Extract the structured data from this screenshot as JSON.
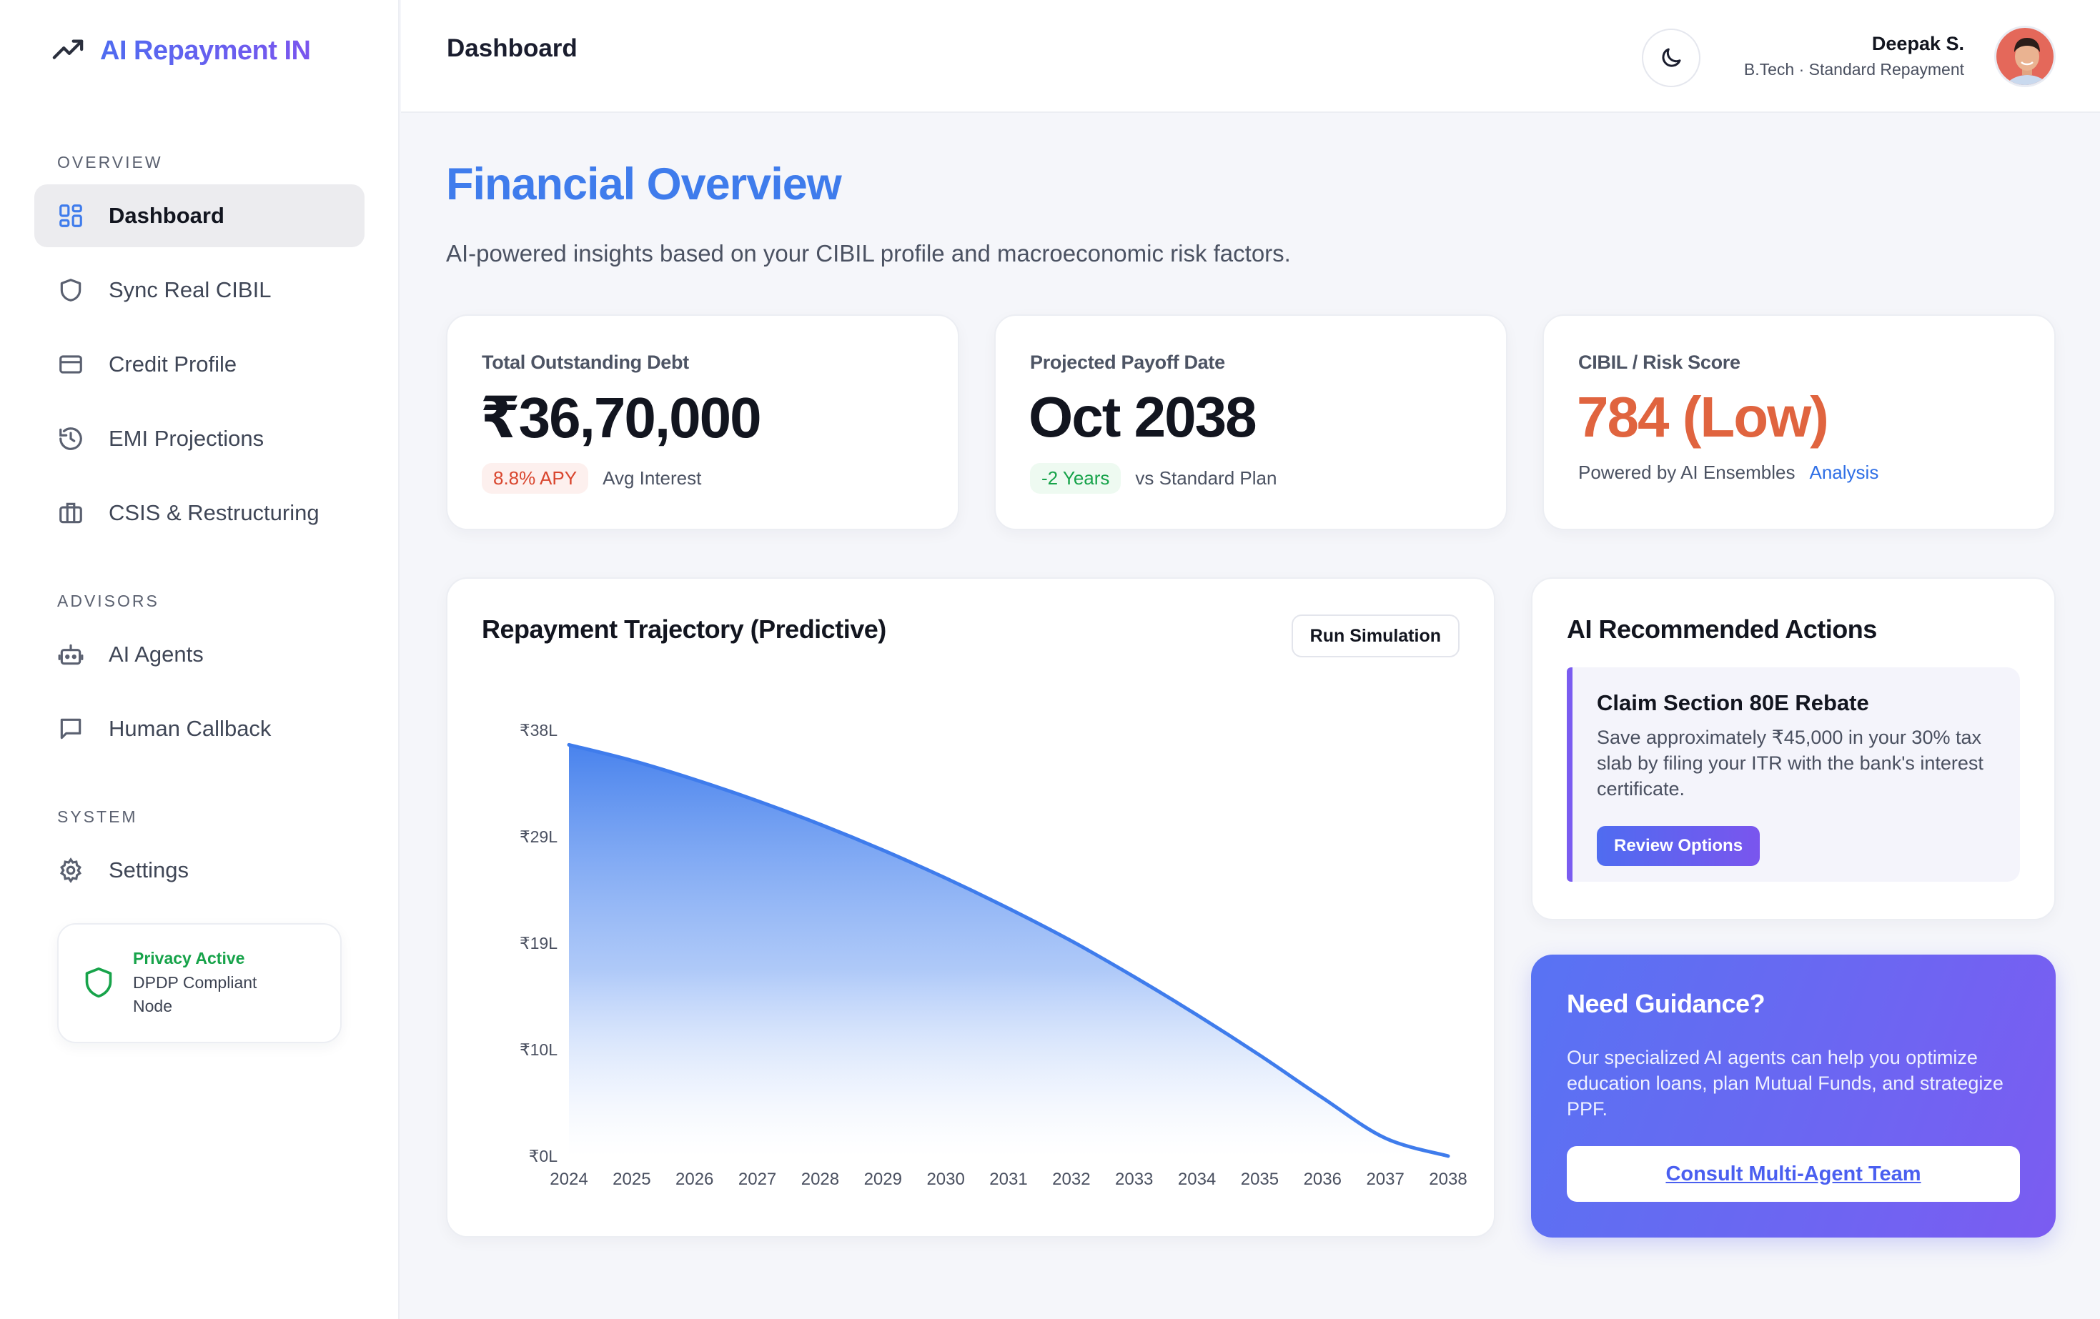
{
  "brand": {
    "name": "AI Repayment IN",
    "icon": "trending-up-icon",
    "color": "#5b65ef"
  },
  "sidebar": {
    "sections": [
      {
        "label": "OVERVIEW"
      },
      {
        "label": "ADVISORS"
      },
      {
        "label": "SYSTEM"
      }
    ],
    "items": [
      {
        "label": "Dashboard",
        "icon": "grid-icon",
        "active": true
      },
      {
        "label": "Sync Real CIBIL",
        "icon": "shield-icon"
      },
      {
        "label": "Credit Profile",
        "icon": "credit-card-icon"
      },
      {
        "label": "EMI Projections",
        "icon": "history-icon"
      },
      {
        "label": "CSIS & Restructuring",
        "icon": "briefcase-icon"
      },
      {
        "label": "AI Agents",
        "icon": "robot-icon"
      },
      {
        "label": "Human Callback",
        "icon": "message-icon"
      },
      {
        "label": "Settings",
        "icon": "gear-icon"
      }
    ],
    "privacy": {
      "title": "Privacy Active",
      "text": "DPDP Compliant Node",
      "color": "#17a34a"
    }
  },
  "header": {
    "title": "Dashboard",
    "user": {
      "name": "Deepak S.",
      "subtitle": "B.Tech · Standard Repayment"
    }
  },
  "main": {
    "title": "Financial Overview",
    "subtitle": "AI-powered insights based on your CIBIL profile and macroeconomic risk factors.",
    "stats": [
      {
        "label": "Total Outstanding Debt",
        "value": "₹36,70,000",
        "pill": "8.8% APY",
        "note": "Avg Interest"
      },
      {
        "label": "Projected Payoff Date",
        "value": "Oct 2038",
        "pill": "-2 Years",
        "note": "vs Standard Plan"
      },
      {
        "label": "CIBIL / Risk Score",
        "value": "784 (Low)",
        "note": "Powered by AI Ensembles",
        "link": "Analysis",
        "value_color": "#e0643f"
      }
    ],
    "chart_card": {
      "title": "Repayment Trajectory (Predictive)",
      "button": "Run Simulation"
    },
    "ai_actions": {
      "title": "AI Recommended Actions",
      "recommendation": {
        "title": "Claim Section 80E Rebate",
        "text": "Save approximately ₹45,000 in your 30% tax slab by filing your ITR with the bank's interest certificate.",
        "button": "Review Options"
      }
    },
    "guidance": {
      "title": "Need Guidance?",
      "text": "Our specialized AI agents can help you optimize education loans, plan Mutual Funds, and strategize PPF.",
      "button": "Consult Multi-Agent Team"
    }
  },
  "chart_data": {
    "type": "area",
    "title": "Repayment Trajectory (Predictive)",
    "x": [
      "2024",
      "2025",
      "2026",
      "2027",
      "2028",
      "2029",
      "2030",
      "2031",
      "2032",
      "2033",
      "2034",
      "2035",
      "2036",
      "2037",
      "2038"
    ],
    "series": [
      {
        "values": [
          36.7,
          35.3,
          33.6,
          31.7,
          29.6,
          27.3,
          24.8,
          22.1,
          19.2,
          16.0,
          12.6,
          9.0,
          5.2,
          1.6,
          0.0
        ]
      }
    ],
    "y_ticks": [
      "₹0L",
      "₹10L",
      "₹19L",
      "₹29L",
      "₹38L"
    ],
    "y_tick_values": [
      0,
      9.5,
      19,
      28.5,
      38
    ],
    "ylim": [
      0,
      38
    ],
    "xlabel": "",
    "ylabel": "",
    "color": "#3f7cec",
    "grid": false,
    "legend": "none"
  }
}
